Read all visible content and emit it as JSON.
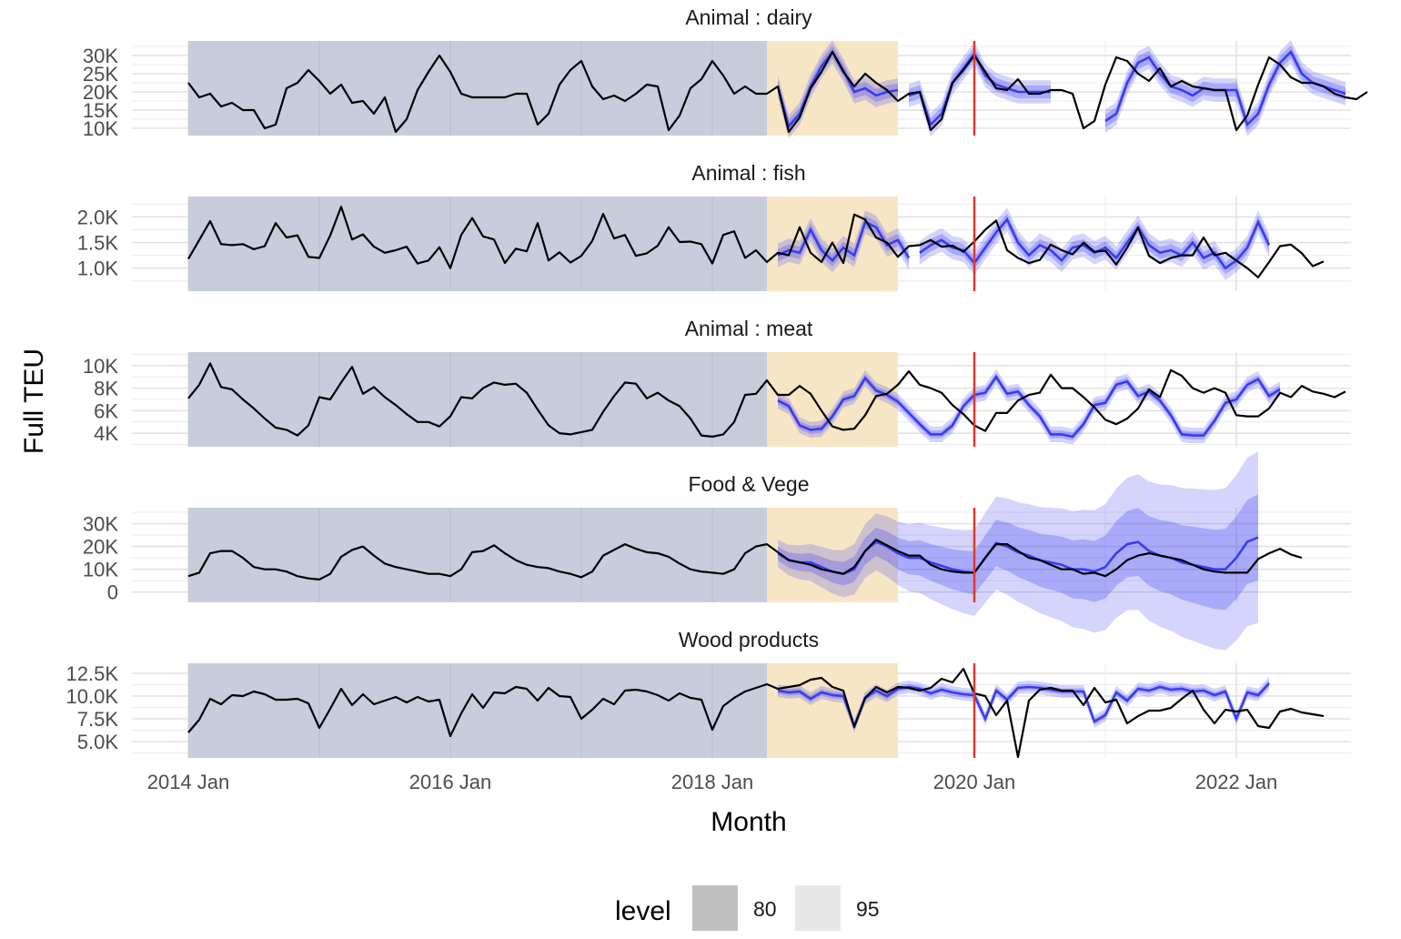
{
  "chart_data": {
    "type": "line",
    "xlabel": "Month",
    "ylabel": "Full TEU",
    "x_ticks": [
      "2014 Jan",
      "2016 Jan",
      "2018 Jan",
      "2020 Jan",
      "2022 Jan"
    ],
    "x_start": "2014 Jan",
    "shaded_regions": [
      {
        "from": "2014 Jan",
        "to": "2018 Jun",
        "color": "#c5cad9"
      },
      {
        "from": "2018 Jun",
        "to": "2019 Jun",
        "color": "#f7e5c3"
      }
    ],
    "vline": {
      "at": "2020 Jan",
      "color": "#e5362a"
    },
    "forecast_color": "#3a3cf0",
    "legend": {
      "title": "level",
      "items": [
        {
          "label": "80",
          "color": "#bfbfbf"
        },
        {
          "label": "95",
          "color": "#e6e6e6"
        }
      ]
    },
    "panels": [
      {
        "title": "Animal : dairy",
        "yticks": [
          {
            "value": 10000,
            "label": "10K"
          },
          {
            "value": 15000,
            "label": "15K"
          },
          {
            "value": 20000,
            "label": "20K"
          },
          {
            "value": 25000,
            "label": "25K"
          },
          {
            "value": 30000,
            "label": "30K"
          }
        ],
        "ylim": [
          8000,
          34000
        ],
        "actual": [
          22500,
          18500,
          19500,
          16000,
          17000,
          15000,
          15000,
          10000,
          11000,
          21000,
          22500,
          26000,
          23000,
          19500,
          22000,
          17000,
          17500,
          14000,
          18500,
          9000,
          12500,
          20500,
          25500,
          30000,
          25500,
          19500,
          18500,
          18500,
          18500,
          18500,
          19500,
          19500,
          11000,
          14000,
          22000,
          26000,
          28500,
          21500,
          18000,
          19000,
          17500,
          19500,
          22000,
          21500,
          9500,
          13500,
          21000,
          23500,
          28500,
          24500,
          19500,
          21500,
          19500,
          19500,
          21500,
          9000,
          13000,
          21000,
          25500,
          31000,
          25500,
          21500,
          25000,
          22500,
          20500,
          17500,
          19500,
          20000,
          9500,
          12500,
          22500,
          26000,
          30000,
          25500,
          21000,
          20500,
          23500,
          19500,
          19500,
          20500,
          20500,
          19500,
          10000,
          12000,
          22000,
          29500,
          28500,
          25000,
          23000,
          26500,
          21500,
          23000,
          21500,
          21000,
          20500,
          20500,
          9500,
          13500,
          22000,
          29500,
          27500,
          24000,
          22500,
          22500,
          21500,
          19500,
          18500,
          18000,
          20000
        ],
        "forecast": [
          {
            "start": 54,
            "values": [
              21500,
              10500,
              14000,
              21500,
              27000,
              31000,
              26000,
              20000,
              21000,
              19000,
              20000,
              20500
            ]
          },
          {
            "start": 66,
            "values": [
              19000,
              20000,
              11000,
              14000,
              22500,
              26500,
              30500,
              24500,
              22000,
              21000,
              20000,
              20000,
              20000,
              20000
            ]
          },
          {
            "start": 84,
            "values": [
              12000,
              14000,
              22500,
              28000,
              29500,
              25000,
              21500,
              20500,
              19000,
              21000,
              20500,
              20500,
              20500,
              11000,
              14000,
              22000,
              28000,
              31000,
              25000,
              22500,
              21500,
              20500,
              19500
            ]
          }
        ],
        "band80": 1800,
        "band95": 3200
      },
      {
        "title": "Animal : fish",
        "yticks": [
          {
            "value": 1000,
            "label": "1.0K"
          },
          {
            "value": 1500,
            "label": "1.5K"
          },
          {
            "value": 2000,
            "label": "2.0K"
          }
        ],
        "ylim": [
          550,
          2400
        ],
        "actual": [
          1180,
          1550,
          1920,
          1470,
          1450,
          1470,
          1370,
          1430,
          1880,
          1600,
          1640,
          1220,
          1200,
          1640,
          2200,
          1560,
          1660,
          1420,
          1300,
          1350,
          1420,
          1090,
          1150,
          1410,
          1000,
          1650,
          1980,
          1620,
          1560,
          1100,
          1380,
          1330,
          1880,
          1150,
          1310,
          1110,
          1240,
          1530,
          2060,
          1580,
          1650,
          1240,
          1290,
          1440,
          1800,
          1510,
          1520,
          1470,
          1090,
          1650,
          1720,
          1200,
          1350,
          1120,
          1300,
          1250,
          1800,
          1300,
          1120,
          1500,
          1100,
          2050,
          1950,
          1600,
          1500,
          1220,
          1430,
          1450,
          1550,
          1420,
          1440,
          1320,
          1520,
          1750,
          1930,
          1350,
          1200,
          1100,
          1160,
          1460,
          1350,
          1270,
          1500,
          1320,
          1340,
          1070,
          1400,
          1790,
          1240,
          1100,
          1200,
          1250,
          1250,
          1600,
          1250,
          1300,
          1150,
          1000,
          820,
          1120,
          1430,
          1460,
          1290,
          1040,
          1130
        ],
        "forecast": [
          {
            "start": 54,
            "values": [
              1250,
              1350,
              1300,
              1750,
              1350,
              1150,
              1400,
              1250,
              1900,
              1800,
              1450,
              1550,
              1200
            ]
          },
          {
            "start": 67,
            "values": [
              1300,
              1450,
              1550,
              1400,
              1350,
              1100,
              1400,
              1700,
              1950,
              1500,
              1250,
              1450,
              1350,
              1150,
              1400,
              1450,
              1300,
              1400,
              1200,
              1500,
              1800,
              1450,
              1300,
              1350,
              1250,
              1500,
              1200,
              1300,
              1000,
              1150,
              1400,
              1900,
              1450
            ]
          }
        ],
        "band80": 120,
        "band95": 230
      },
      {
        "title": "Animal : meat",
        "yticks": [
          {
            "value": 4000,
            "label": "4K"
          },
          {
            "value": 6000,
            "label": "6K"
          },
          {
            "value": 8000,
            "label": "8K"
          },
          {
            "value": 10000,
            "label": "10K"
          }
        ],
        "ylim": [
          2800,
          11200
        ],
        "actual": [
          7100,
          8300,
          10200,
          8100,
          7900,
          7000,
          6200,
          5300,
          4500,
          4300,
          3800,
          4700,
          7200,
          7000,
          8500,
          9900,
          7500,
          8100,
          7200,
          6500,
          5700,
          5000,
          5000,
          4600,
          5500,
          7200,
          7100,
          8000,
          8500,
          8300,
          8400,
          7600,
          6100,
          4700,
          4000,
          3900,
          4100,
          4300,
          5900,
          7300,
          8500,
          8400,
          7100,
          7600,
          6900,
          6400,
          5300,
          3800,
          3700,
          3900,
          5000,
          7400,
          7500,
          8700,
          7400,
          7400,
          8200,
          7500,
          6000,
          4600,
          4300,
          4400,
          5600,
          7300,
          7500,
          8300,
          9500,
          8300,
          8000,
          7600,
          6500,
          5700,
          4700,
          4200,
          5800,
          5800,
          6900,
          7400,
          7600,
          9200,
          8000,
          8000,
          7200,
          6300,
          5200,
          4800,
          5300,
          6200,
          7900,
          7200,
          9600,
          9100,
          8000,
          7600,
          8000,
          7600,
          5600,
          5500,
          5500,
          6200,
          7600,
          7200,
          8200,
          7700,
          7500,
          7200,
          7700
        ],
        "forecast": [
          {
            "start": 54,
            "values": [
              6900,
              6400,
              4700,
              4300,
              4400,
              5500,
              7000,
              7300,
              8900,
              7800,
              7400,
              6800,
              5800,
              4800,
              3900,
              3900,
              4700,
              6400,
              7400,
              7600,
              9000,
              7500,
              7700,
              6500,
              5500,
              3900,
              3900,
              3700,
              4800,
              6500,
              6700,
              8300,
              8600,
              7300,
              7700,
              6900,
              5600,
              3900,
              3800,
              3800,
              5100,
              6700,
              7000,
              8300,
              8800,
              7300,
              7900
            ]
          }
        ],
        "band80": 350,
        "band95": 700
      },
      {
        "title": "Food & Vege",
        "yticks": [
          {
            "value": 0,
            "label": "0"
          },
          {
            "value": 10000,
            "label": "10K"
          },
          {
            "value": 20000,
            "label": "20K"
          },
          {
            "value": 30000,
            "label": "30K"
          }
        ],
        "ylim": [
          -4500,
          37000
        ],
        "actual": [
          7000,
          8500,
          17000,
          18000,
          18000,
          15000,
          11000,
          10000,
          10000,
          9000,
          7000,
          6000,
          5500,
          8000,
          15500,
          18500,
          20000,
          16000,
          12500,
          11000,
          10000,
          9000,
          8000,
          8000,
          7000,
          10000,
          17500,
          18000,
          20500,
          17000,
          14000,
          12000,
          11000,
          10500,
          9000,
          8000,
          6500,
          9000,
          16000,
          18500,
          21000,
          19000,
          17500,
          17000,
          15500,
          12500,
          10000,
          9000,
          8500,
          8000,
          10000,
          17000,
          20000,
          21000,
          17500,
          14000,
          13000,
          12000,
          10000,
          9000,
          8000,
          11000,
          18000,
          23000,
          20500,
          18000,
          16000,
          16000,
          12000,
          10000,
          9000,
          8500,
          8500,
          15000,
          21000,
          21000,
          18000,
          15000,
          14000,
          12000,
          10000,
          10000,
          8000,
          8500,
          7000,
          10000,
          14000,
          16000,
          17000,
          16000,
          15000,
          14000,
          12000,
          10000,
          9000,
          8500,
          8500,
          8500,
          14500,
          17000,
          19000,
          16500,
          15000
        ],
        "forecast": [
          {
            "start": 54,
            "values": [
              17000,
              14000,
              13000,
              13000,
              11000,
              9000,
              8000,
              10000,
              18000,
              22000,
              20000,
              17000,
              15000,
              15000,
              13000,
              11500,
              10000,
              9000,
              8500,
              15000,
              21500,
              20000,
              17500,
              16000,
              14000,
              13000,
              12000,
              10000,
              10000,
              9000,
              11000,
              17000,
              21000,
              22000,
              18000,
              16000,
              15000,
              13000,
              12000,
              11000,
              10000,
              10000,
              15000,
              22000,
              24000
            ]
          }
        ],
        "band80": 3000,
        "band95": 6000,
        "band_growth": 0.12
      },
      {
        "title": "Wood products",
        "yticks": [
          {
            "value": 5000,
            "label": "5.0K"
          },
          {
            "value": 7500,
            "label": "7.5K"
          },
          {
            "value": 10000,
            "label": "10.0K"
          },
          {
            "value": 12500,
            "label": "12.5K"
          }
        ],
        "ylim": [
          3200,
          13600
        ],
        "actual": [
          6000,
          7400,
          9700,
          9100,
          10100,
          10000,
          10500,
          10200,
          9600,
          9600,
          9700,
          9200,
          6500,
          8600,
          10800,
          9000,
          10200,
          9100,
          9500,
          9900,
          9300,
          9900,
          9400,
          9600,
          5600,
          8100,
          10200,
          8700,
          10400,
          10300,
          11000,
          10800,
          9500,
          10900,
          10000,
          9900,
          7500,
          8500,
          9700,
          9100,
          10600,
          10700,
          10500,
          10100,
          9500,
          10300,
          9800,
          9600,
          6300,
          8900,
          9800,
          10500,
          10900,
          11300,
          10800,
          11000,
          11200,
          11800,
          12000,
          11000,
          10600,
          6600,
          9800,
          11000,
          10400,
          11000,
          10900,
          10600,
          10900,
          11900,
          11500,
          13000,
          10300,
          10000,
          7900,
          9500,
          3300,
          9500,
          10700,
          10900,
          10600,
          10600,
          9000,
          10900,
          9300,
          9600,
          7000,
          7800,
          8400,
          8400,
          8700,
          9700,
          10600,
          8500,
          7000,
          8500,
          8300,
          8500,
          6700,
          6500,
          8300,
          8600,
          8200,
          8000,
          7800
        ],
        "forecast": [
          {
            "start": 54,
            "values": [
              10600,
              10400,
              10500,
              9700,
              10400,
              10100,
              10000,
              6700,
              9800,
              10600,
              10000,
              10800,
              11000,
              10800,
              10300,
              10700,
              10400,
              10200,
              10100,
              7500,
              10600,
              9600,
              10900,
              11000,
              10900,
              10700,
              10500,
              10500,
              10500,
              7200,
              7900,
              10400,
              9500,
              10800,
              10600,
              11000,
              10700,
              10800,
              10500,
              10600,
              10100,
              10500,
              7500,
              10400,
              10100,
              11400
            ]
          }
        ],
        "band80": 350,
        "band95": 700
      }
    ]
  }
}
